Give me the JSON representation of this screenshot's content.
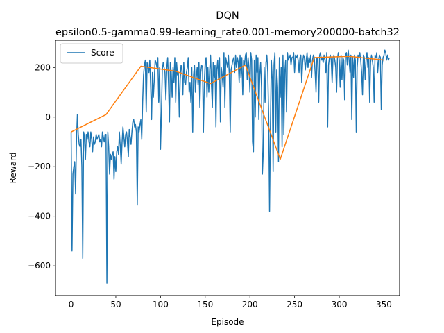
{
  "chart_data": {
    "type": "line",
    "title": "DQN",
    "subtitle": "epsilon0.5-gamma0.99-learning_rate0.001-memory200000-batch32",
    "xlabel": "Episode",
    "ylabel": "Reward",
    "xlim": [
      -17.5,
      367.5
    ],
    "ylim": [
      -720,
      310
    ],
    "x_ticks": [
      0,
      50,
      100,
      150,
      200,
      250,
      300,
      350
    ],
    "y_ticks": [
      -600,
      -400,
      -200,
      0,
      200
    ],
    "y_tick_labels": [
      "−600",
      "−400",
      "−200",
      "0",
      "200"
    ],
    "grid": false,
    "legend_position": "top-left",
    "series": [
      {
        "name": "Score",
        "color": "#1f77b4",
        "x_start": 0,
        "x_step": 1,
        "values": [
          -60,
          -540,
          -230,
          -200,
          -180,
          -310,
          -90,
          10,
          -70,
          -110,
          -120,
          -90,
          -200,
          -570,
          -60,
          -80,
          -170,
          -70,
          -90,
          -60,
          -100,
          -120,
          -60,
          -90,
          -140,
          -80,
          -110,
          -100,
          -70,
          -90,
          -80,
          -70,
          -100,
          -90,
          -120,
          -60,
          -80,
          -100,
          -70,
          -70,
          -670,
          -60,
          -120,
          -230,
          -150,
          -170,
          -150,
          -140,
          -250,
          -160,
          -220,
          -140,
          -120,
          -150,
          -60,
          -120,
          -190,
          -100,
          -40,
          -80,
          -120,
          -70,
          -60,
          -100,
          -160,
          -50,
          -80,
          -110,
          -60,
          -20,
          -10,
          -40,
          -30,
          -60,
          -355,
          -40,
          -60,
          -30,
          -10,
          -90,
          60,
          170,
          210,
          230,
          20,
          220,
          200,
          180,
          230,
          120,
          -10,
          180,
          80,
          150,
          230,
          220,
          200,
          240,
          60,
          200,
          -130,
          10,
          190,
          220,
          200,
          180,
          70,
          200,
          240,
          130,
          -20,
          220,
          180,
          80,
          200,
          140,
          240,
          60,
          220,
          170,
          180,
          0,
          150,
          210,
          190,
          90,
          220,
          140,
          130,
          180,
          200,
          240,
          100,
          140,
          60,
          200,
          -60,
          170,
          210,
          100,
          160,
          200,
          130,
          220,
          40,
          180,
          210,
          200,
          -60,
          140,
          220,
          240,
          80,
          200,
          100,
          190,
          250,
          130,
          40,
          220,
          160,
          210,
          -40,
          190,
          230,
          150,
          240,
          -20,
          200,
          170,
          120,
          260,
          40,
          240,
          220,
          200,
          250,
          170,
          -60,
          190,
          210,
          230,
          240,
          180,
          250,
          200,
          240,
          220,
          140,
          250,
          160,
          240,
          90,
          230,
          210,
          250,
          260,
          150,
          240,
          200,
          100,
          260,
          230,
          -100,
          -140,
          230,
          0,
          250,
          180,
          240,
          -10,
          170,
          220,
          120,
          -230,
          -140,
          200,
          60,
          220,
          250,
          180,
          10,
          -380,
          -30,
          230,
          150,
          -220,
          210,
          260,
          -60,
          190,
          120,
          -180,
          240,
          80,
          200,
          -120,
          250,
          -70,
          180,
          230,
          20,
          260,
          230,
          240,
          250,
          210,
          240,
          240,
          260,
          180,
          250,
          240,
          250,
          230,
          180,
          240,
          250,
          140,
          220,
          250,
          240,
          190,
          230,
          260,
          200,
          240,
          220,
          250,
          160,
          230,
          250,
          240,
          180,
          100,
          240,
          230,
          60,
          250,
          260,
          230,
          240,
          220,
          250,
          230,
          180,
          260,
          -40,
          210,
          240,
          250,
          230,
          140,
          240,
          250,
          230,
          200,
          100,
          240,
          260,
          230,
          120,
          250,
          150,
          240,
          230,
          70,
          250,
          260,
          210,
          270,
          230,
          180,
          250,
          -10,
          240,
          160,
          250,
          230,
          -60,
          200,
          250,
          240,
          260,
          230,
          180,
          90,
          250,
          240,
          150,
          230,
          260,
          200,
          240,
          60,
          220,
          250,
          230,
          200,
          60,
          250,
          240,
          260,
          180,
          230,
          250,
          240,
          30,
          210,
          240,
          250,
          270,
          260,
          230,
          250,
          230,
          240
        ]
      },
      {
        "name": "",
        "color": "#ff7f0e",
        "x": [
          0,
          39,
          78,
          117,
          156,
          195,
          234,
          272,
          311,
          350
        ],
        "values": [
          -60,
          10,
          205,
          185,
          135,
          210,
          -170,
          240,
          245,
          230
        ]
      }
    ]
  }
}
